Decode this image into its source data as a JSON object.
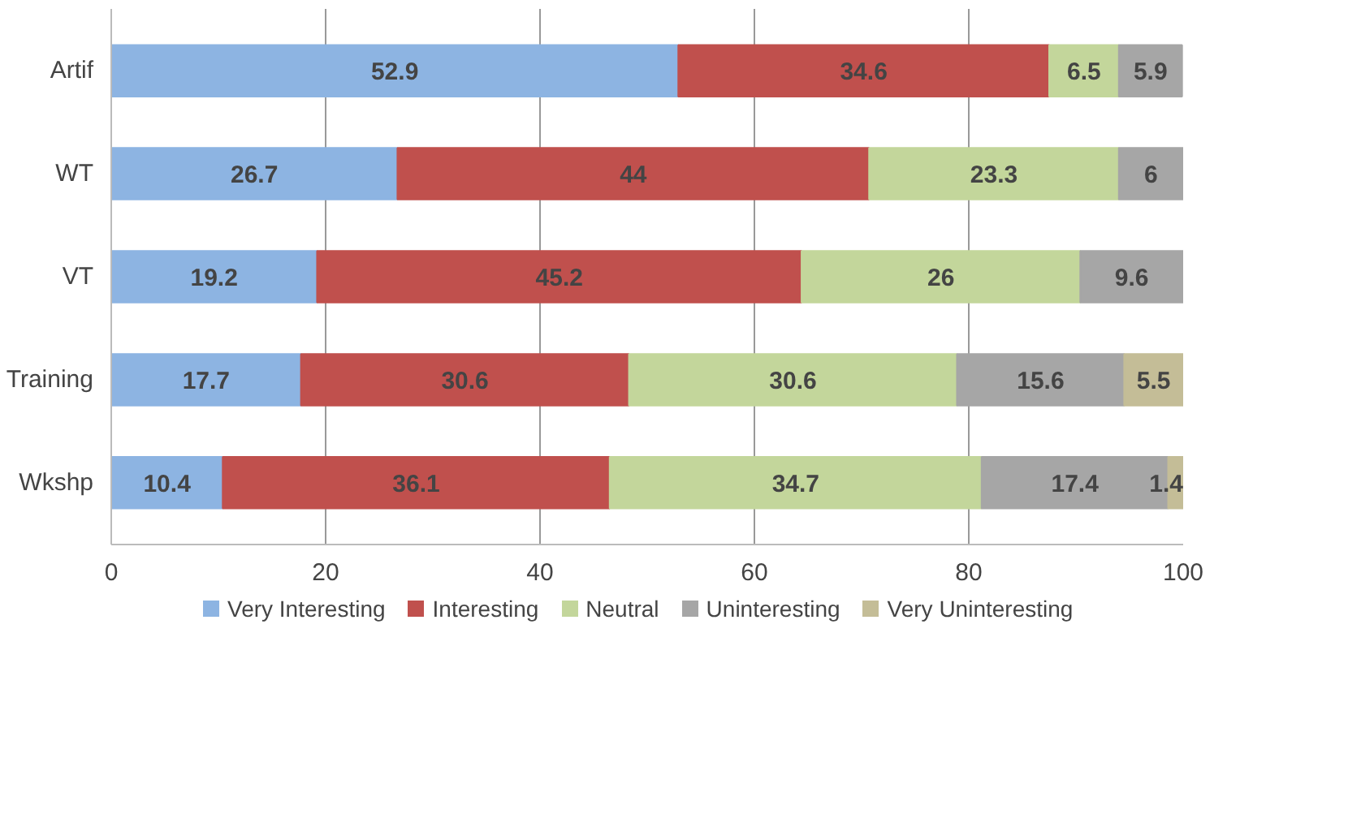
{
  "chart_data": {
    "type": "bar",
    "orientation": "horizontal",
    "stacked": true,
    "data_labels": true,
    "grid": "x",
    "legend": "bottom",
    "categories": [
      "Artif",
      "WT",
      "VT",
      "Training",
      "Wkshp"
    ],
    "xlim": [
      0,
      100
    ],
    "xticks": [
      0,
      20,
      40,
      60,
      80,
      100
    ],
    "series": [
      {
        "name": "Very Interesting",
        "color": "#8db4e2",
        "values": [
          52.9,
          26.7,
          19.2,
          17.7,
          10.4
        ]
      },
      {
        "name": "Interesting",
        "color": "#c0504d",
        "values": [
          34.6,
          44,
          45.2,
          30.6,
          36.1
        ]
      },
      {
        "name": "Neutral",
        "color": "#c3d69b",
        "values": [
          6.5,
          23.3,
          26,
          30.6,
          34.7
        ]
      },
      {
        "name": "Uninteresting",
        "color": "#a6a6a6",
        "values": [
          5.9,
          6,
          9.6,
          15.6,
          17.4
        ]
      },
      {
        "name": "Very Uninteresting",
        "color": "#c4bd97",
        "values": [
          null,
          null,
          null,
          5.5,
          1.4
        ]
      }
    ]
  }
}
